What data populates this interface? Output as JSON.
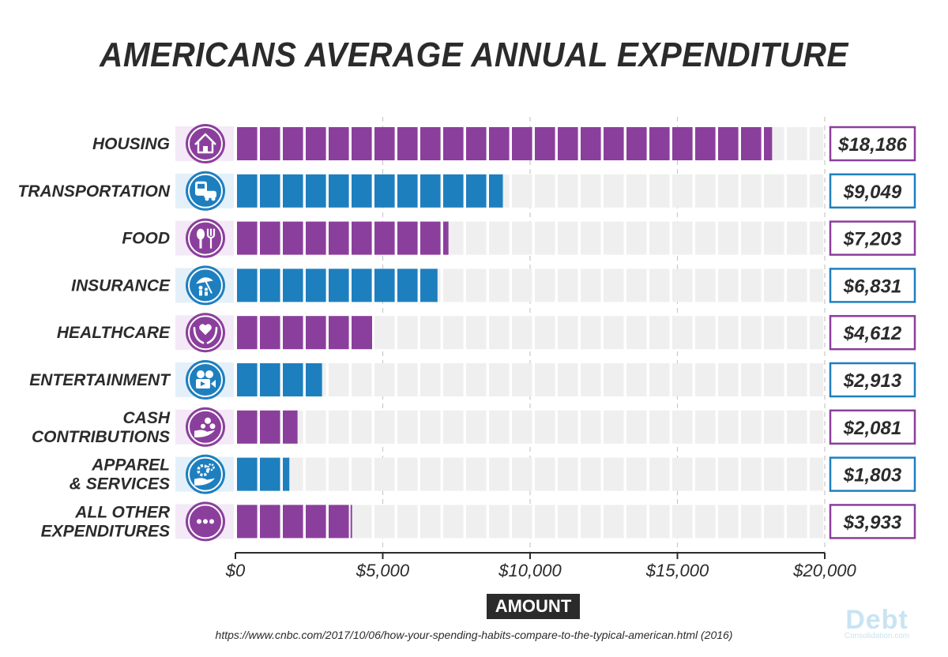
{
  "title": "AMERICANS AVERAGE ANNUAL EXPENDITURE",
  "source": "https://www.cnbc.com/2017/10/06/how-your-spending-habits-compare-to-the-typical-american.html (2016)",
  "logo": {
    "main": "Debt",
    "sub": "Consolidation.com"
  },
  "colors": {
    "purple": "#8b3f9c",
    "blue": "#1e7fbf",
    "track": "#efefef",
    "text": "#2b2b2b"
  },
  "chart_data": {
    "type": "bar",
    "orientation": "horizontal",
    "title": "AMERICANS AVERAGE ANNUAL EXPENDITURE",
    "xlabel": "AMOUNT",
    "ylabel": "",
    "xlim": [
      0,
      20000
    ],
    "xticks": [
      0,
      5000,
      10000,
      15000,
      20000
    ],
    "xtick_labels": [
      "$0",
      "$5,000",
      "$10,000",
      "$15,000",
      "$20,000"
    ],
    "grid": true,
    "categories": [
      {
        "lines": [
          "HOUSING"
        ],
        "value": 18186,
        "value_label": "$18,186",
        "color": "purple",
        "icon": "house-icon"
      },
      {
        "lines": [
          "TRANSPORTATION"
        ],
        "value": 9049,
        "value_label": "$9,049",
        "color": "blue",
        "icon": "bus-car-icon"
      },
      {
        "lines": [
          "FOOD"
        ],
        "value": 7203,
        "value_label": "$7,203",
        "color": "purple",
        "icon": "spoon-fork-icon"
      },
      {
        "lines": [
          "INSURANCE"
        ],
        "value": 6831,
        "value_label": "$6,831",
        "color": "blue",
        "icon": "umbrella-family-icon"
      },
      {
        "lines": [
          "HEALTHCARE"
        ],
        "value": 4612,
        "value_label": "$4,612",
        "color": "purple",
        "icon": "heart-hands-icon"
      },
      {
        "lines": [
          "ENTERTAINMENT"
        ],
        "value": 2913,
        "value_label": "$2,913",
        "color": "blue",
        "icon": "film-camera-icon"
      },
      {
        "lines": [
          "CASH",
          "CONTRIBUTIONS"
        ],
        "value": 2081,
        "value_label": "$2,081",
        "color": "purple",
        "icon": "coins-hand-icon"
      },
      {
        "lines": [
          "APPAREL",
          "& SERVICES"
        ],
        "value": 1803,
        "value_label": "$1,803",
        "color": "blue",
        "icon": "gear-hand-icon"
      },
      {
        "lines": [
          "ALL OTHER",
          "EXPENDITURES"
        ],
        "value": 3933,
        "value_label": "$3,933",
        "color": "purple",
        "icon": "ellipsis-icon"
      }
    ]
  }
}
